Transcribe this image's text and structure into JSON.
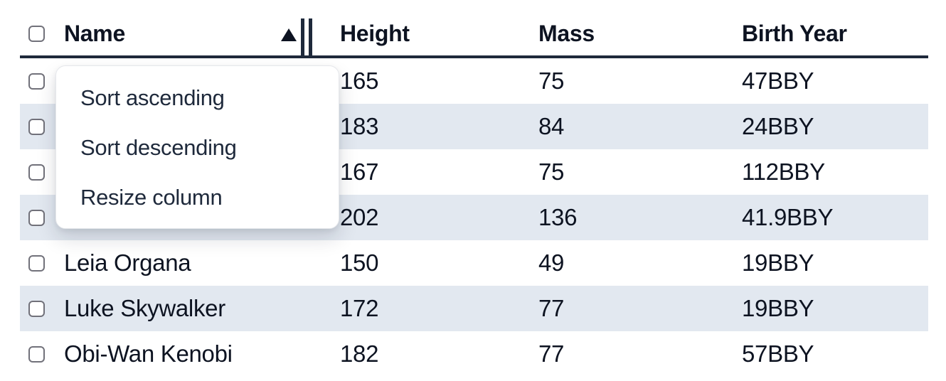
{
  "table": {
    "select_all": {
      "checked": false
    },
    "columns": [
      {
        "label": "Name",
        "sorted": "ascending"
      },
      {
        "label": "Height"
      },
      {
        "label": "Mass"
      },
      {
        "label": "Birth Year"
      }
    ],
    "sort_indicator": "triangle-up",
    "rows": [
      {
        "name": "",
        "height": "165",
        "mass": "75",
        "birth_year": "47BBY",
        "checked": false
      },
      {
        "name": "",
        "height": "183",
        "mass": "84",
        "birth_year": "24BBY",
        "checked": false
      },
      {
        "name": "",
        "height": "167",
        "mass": "75",
        "birth_year": "112BBY",
        "checked": false
      },
      {
        "name": "",
        "height": "202",
        "mass": "136",
        "birth_year": "41.9BBY",
        "checked": false
      },
      {
        "name": "Leia Organa",
        "height": "150",
        "mass": "49",
        "birth_year": "19BBY",
        "checked": false
      },
      {
        "name": "Luke Skywalker",
        "height": "172",
        "mass": "77",
        "birth_year": "19BBY",
        "checked": false
      },
      {
        "name": "Obi-Wan Kenobi",
        "height": "182",
        "mass": "77",
        "birth_year": "57BBY",
        "checked": false
      }
    ]
  },
  "context_menu": {
    "items": [
      {
        "label": "Sort ascending"
      },
      {
        "label": "Sort descending"
      },
      {
        "label": "Resize column"
      }
    ]
  },
  "colors": {
    "row_stripe": "#e2e8f0",
    "header_border": "#1e293b",
    "table_text": "#0d1321",
    "menu_text": "#1e293b",
    "checkbox_border": "#71717a"
  }
}
